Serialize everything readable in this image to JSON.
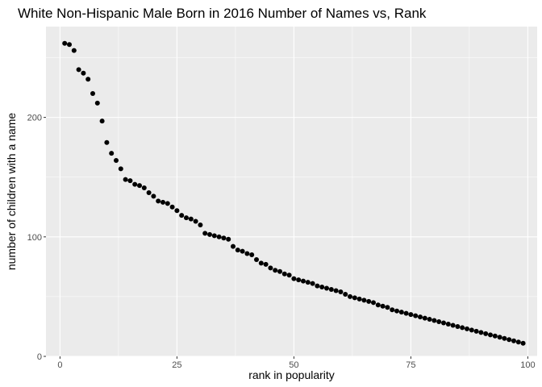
{
  "chart_data": {
    "type": "scatter",
    "title": "White Non-Hispanic Male Born in 2016 Number of Names vs, Rank",
    "xlabel": "rank in popularity",
    "ylabel": "number of children with a name",
    "xlim": [
      -3,
      102
    ],
    "ylim": [
      0,
      276
    ],
    "xticks": [
      0,
      25,
      50,
      75,
      100
    ],
    "yticks": [
      0,
      100,
      200
    ],
    "xtick_labels": [
      "0",
      "25",
      "50",
      "75",
      "100"
    ],
    "ytick_labels": [
      "0",
      "100",
      "200"
    ],
    "grid": true,
    "background": "#ebebeb",
    "grid_color": "#ffffff",
    "point_color": "#000000",
    "x": [
      1,
      2,
      3,
      4,
      5,
      6,
      7,
      8,
      9,
      10,
      11,
      12,
      13,
      14,
      15,
      16,
      17,
      18,
      19,
      20,
      21,
      22,
      23,
      24,
      25,
      26,
      27,
      28,
      29,
      30,
      31,
      32,
      33,
      34,
      35,
      36,
      37,
      38,
      39,
      40,
      41,
      42,
      43,
      44,
      45,
      46,
      47,
      48,
      49,
      50,
      51,
      52,
      53,
      54,
      55,
      56,
      57,
      58,
      59,
      60,
      61,
      62,
      63,
      64,
      65,
      66,
      67,
      68,
      69,
      70,
      71,
      72,
      73,
      74,
      75,
      76,
      77,
      78,
      79,
      80,
      81,
      82,
      83,
      84,
      85,
      86,
      87,
      88,
      89,
      90,
      91,
      92,
      93,
      94,
      95,
      96,
      97,
      98,
      99
    ],
    "y": [
      262,
      261,
      256,
      240,
      237,
      232,
      220,
      212,
      197,
      179,
      170,
      164,
      157,
      148,
      147,
      144,
      143,
      141,
      137,
      134,
      130,
      129,
      128,
      125,
      122,
      118,
      116,
      115,
      113,
      110,
      103,
      102,
      101,
      100,
      99,
      98,
      92,
      89,
      88,
      86,
      85,
      81,
      78,
      77,
      74,
      72,
      71,
      69,
      68,
      65,
      64,
      63,
      62,
      61,
      59,
      58,
      57,
      56,
      55,
      54,
      52,
      50,
      49,
      48,
      47,
      46,
      45,
      43,
      42,
      41,
      39,
      38,
      37,
      36,
      35,
      34,
      33,
      32,
      31,
      30,
      29,
      28,
      27,
      26,
      25,
      24,
      23,
      22,
      21,
      20,
      19,
      18,
      17,
      16,
      15,
      14,
      13,
      12,
      11
    ]
  }
}
